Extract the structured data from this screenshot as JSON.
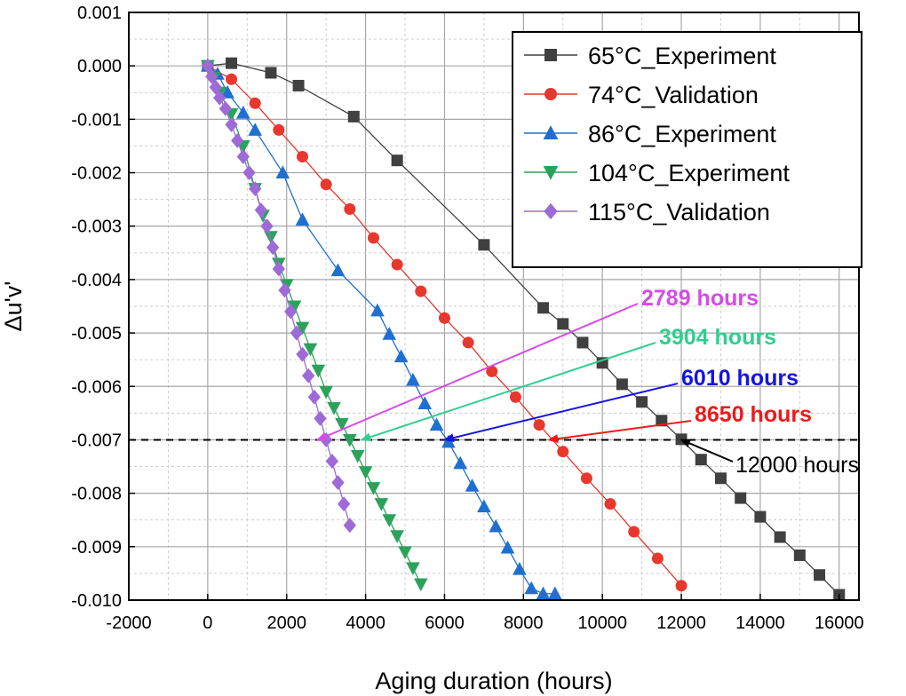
{
  "chart_data": {
    "type": "line",
    "title": "",
    "xlabel": "Aging duration (hours)",
    "ylabel": "Δu'v'",
    "xlim": [
      -2000,
      16500
    ],
    "ylim": [
      -0.01,
      0.001
    ],
    "xticks": [
      -2000,
      0,
      2000,
      4000,
      6000,
      8000,
      10000,
      12000,
      14000,
      16000
    ],
    "yticks": [
      0.001,
      0.0,
      -0.001,
      -0.002,
      -0.003,
      -0.004,
      -0.005,
      -0.006,
      -0.007,
      -0.008,
      -0.009,
      -0.01
    ],
    "ytick_labels": [
      "0.001",
      "0.000",
      "-0.001",
      "-0.002",
      "-0.003",
      "-0.004",
      "-0.005",
      "-0.006",
      "-0.007",
      "-0.008",
      "-0.009",
      "-0.010"
    ],
    "grid": true,
    "legend_position": "top-right",
    "threshold": {
      "y": -0.007,
      "style": "dashed",
      "color": "#000000"
    },
    "series": [
      {
        "name": "65°C_Experiment",
        "color": "#404040",
        "marker": "square",
        "x": [
          0,
          600,
          1600,
          2300,
          3700,
          4800,
          7000,
          8500,
          9000,
          9500,
          10000,
          10500,
          11000,
          11500,
          12000,
          12500,
          13000,
          13500,
          14000,
          14500,
          15000,
          15500,
          16000
        ],
        "y": [
          0,
          5e-05,
          -0.00013,
          -0.00037,
          -0.00095,
          -0.00177,
          -0.00335,
          -0.00453,
          -0.00483,
          -0.00518,
          -0.00556,
          -0.00596,
          -0.00629,
          -0.00664,
          -0.00699,
          -0.00737,
          -0.00772,
          -0.00809,
          -0.00844,
          -0.00882,
          -0.00916,
          -0.00953,
          -0.0099
        ]
      },
      {
        "name": "74°C_Validation",
        "color": "#e8372c",
        "marker": "circle",
        "x": [
          0,
          600,
          1200,
          1800,
          2400,
          3000,
          3600,
          4200,
          4800,
          5400,
          6000,
          6600,
          7200,
          7800,
          8400,
          9000,
          9600,
          10200,
          10800,
          11400,
          12000
        ],
        "y": [
          0,
          -0.00025,
          -0.0007,
          -0.0012,
          -0.0017,
          -0.00222,
          -0.00268,
          -0.00322,
          -0.00372,
          -0.00422,
          -0.00472,
          -0.00518,
          -0.00572,
          -0.0062,
          -0.00672,
          -0.00722,
          -0.00772,
          -0.0082,
          -0.00872,
          -0.00922,
          -0.00973
        ]
      },
      {
        "name": "86°C_Experiment",
        "color": "#1f6fd1",
        "marker": "triangle-up",
        "x": [
          0,
          250,
          500,
          900,
          1200,
          1900,
          2400,
          3300,
          4300,
          4600,
          4900,
          5200,
          5500,
          5800,
          6100,
          6400,
          6700,
          7000,
          7300,
          7600,
          7900,
          8200,
          8500,
          8800
        ],
        "y": [
          0,
          -0.00015,
          -0.0005,
          -0.00088,
          -0.0012,
          -0.002,
          -0.00288,
          -0.00383,
          -0.00458,
          -0.00502,
          -0.00544,
          -0.00588,
          -0.00632,
          -0.00672,
          -0.00704,
          -0.00744,
          -0.00786,
          -0.00825,
          -0.00862,
          -0.00902,
          -0.00942,
          -0.00978,
          -0.00988,
          -0.00988
        ]
      },
      {
        "name": "104°C_Experiment",
        "color": "#2aa35a",
        "marker": "triangle-down",
        "x": [
          0,
          150,
          300,
          600,
          900,
          1200,
          1400,
          1600,
          1800,
          2000,
          2200,
          2400,
          2600,
          2800,
          3000,
          3200,
          3400,
          3600,
          3800,
          4000,
          4200,
          4400,
          4600,
          4800,
          5000,
          5200,
          5400
        ],
        "y": [
          0,
          -0.00022,
          -0.0005,
          -0.0009,
          -0.0015,
          -0.0023,
          -0.0028,
          -0.0032,
          -0.0037,
          -0.0041,
          -0.0045,
          -0.0049,
          -0.0053,
          -0.0057,
          -0.0061,
          -0.0064,
          -0.0067,
          -0.007,
          -0.0073,
          -0.0076,
          -0.0079,
          -0.0082,
          -0.0085,
          -0.0088,
          -0.0091,
          -0.0094,
          -0.0097
        ]
      },
      {
        "name": "115°C_Validation",
        "color": "#9d6ad8",
        "marker": "diamond",
        "x": [
          0,
          100,
          200,
          300,
          450,
          600,
          750,
          900,
          1050,
          1200,
          1350,
          1500,
          1650,
          1800,
          1950,
          2100,
          2250,
          2400,
          2550,
          2700,
          2850,
          3000,
          3150,
          3300,
          3450,
          3600
        ],
        "y": [
          0,
          -0.0002,
          -0.0004,
          -0.0006,
          -0.0008,
          -0.0011,
          -0.0014,
          -0.0017,
          -0.002,
          -0.0023,
          -0.0027,
          -0.003,
          -0.0034,
          -0.0038,
          -0.0042,
          -0.0046,
          -0.005,
          -0.0054,
          -0.0058,
          -0.0062,
          -0.0066,
          -0.007,
          -0.0074,
          -0.0078,
          -0.0082,
          -0.0086
        ]
      }
    ],
    "annotations": [
      {
        "text": "2789 hours",
        "color": "#d54ae8",
        "target_x": 2789,
        "target_y": -0.007,
        "bold": true
      },
      {
        "text": "3904 hours",
        "color": "#2fcf8e",
        "target_x": 3904,
        "target_y": -0.007,
        "bold": true
      },
      {
        "text": "6010 hours",
        "color": "#1414e0",
        "target_x": 6010,
        "target_y": -0.007,
        "bold": true
      },
      {
        "text": "8650 hours",
        "color": "#ee1a1a",
        "target_x": 8650,
        "target_y": -0.007,
        "bold": true
      },
      {
        "text": "12000 hours",
        "color": "#000000",
        "target_x": 12000,
        "target_y": -0.007,
        "bold": false
      }
    ]
  }
}
